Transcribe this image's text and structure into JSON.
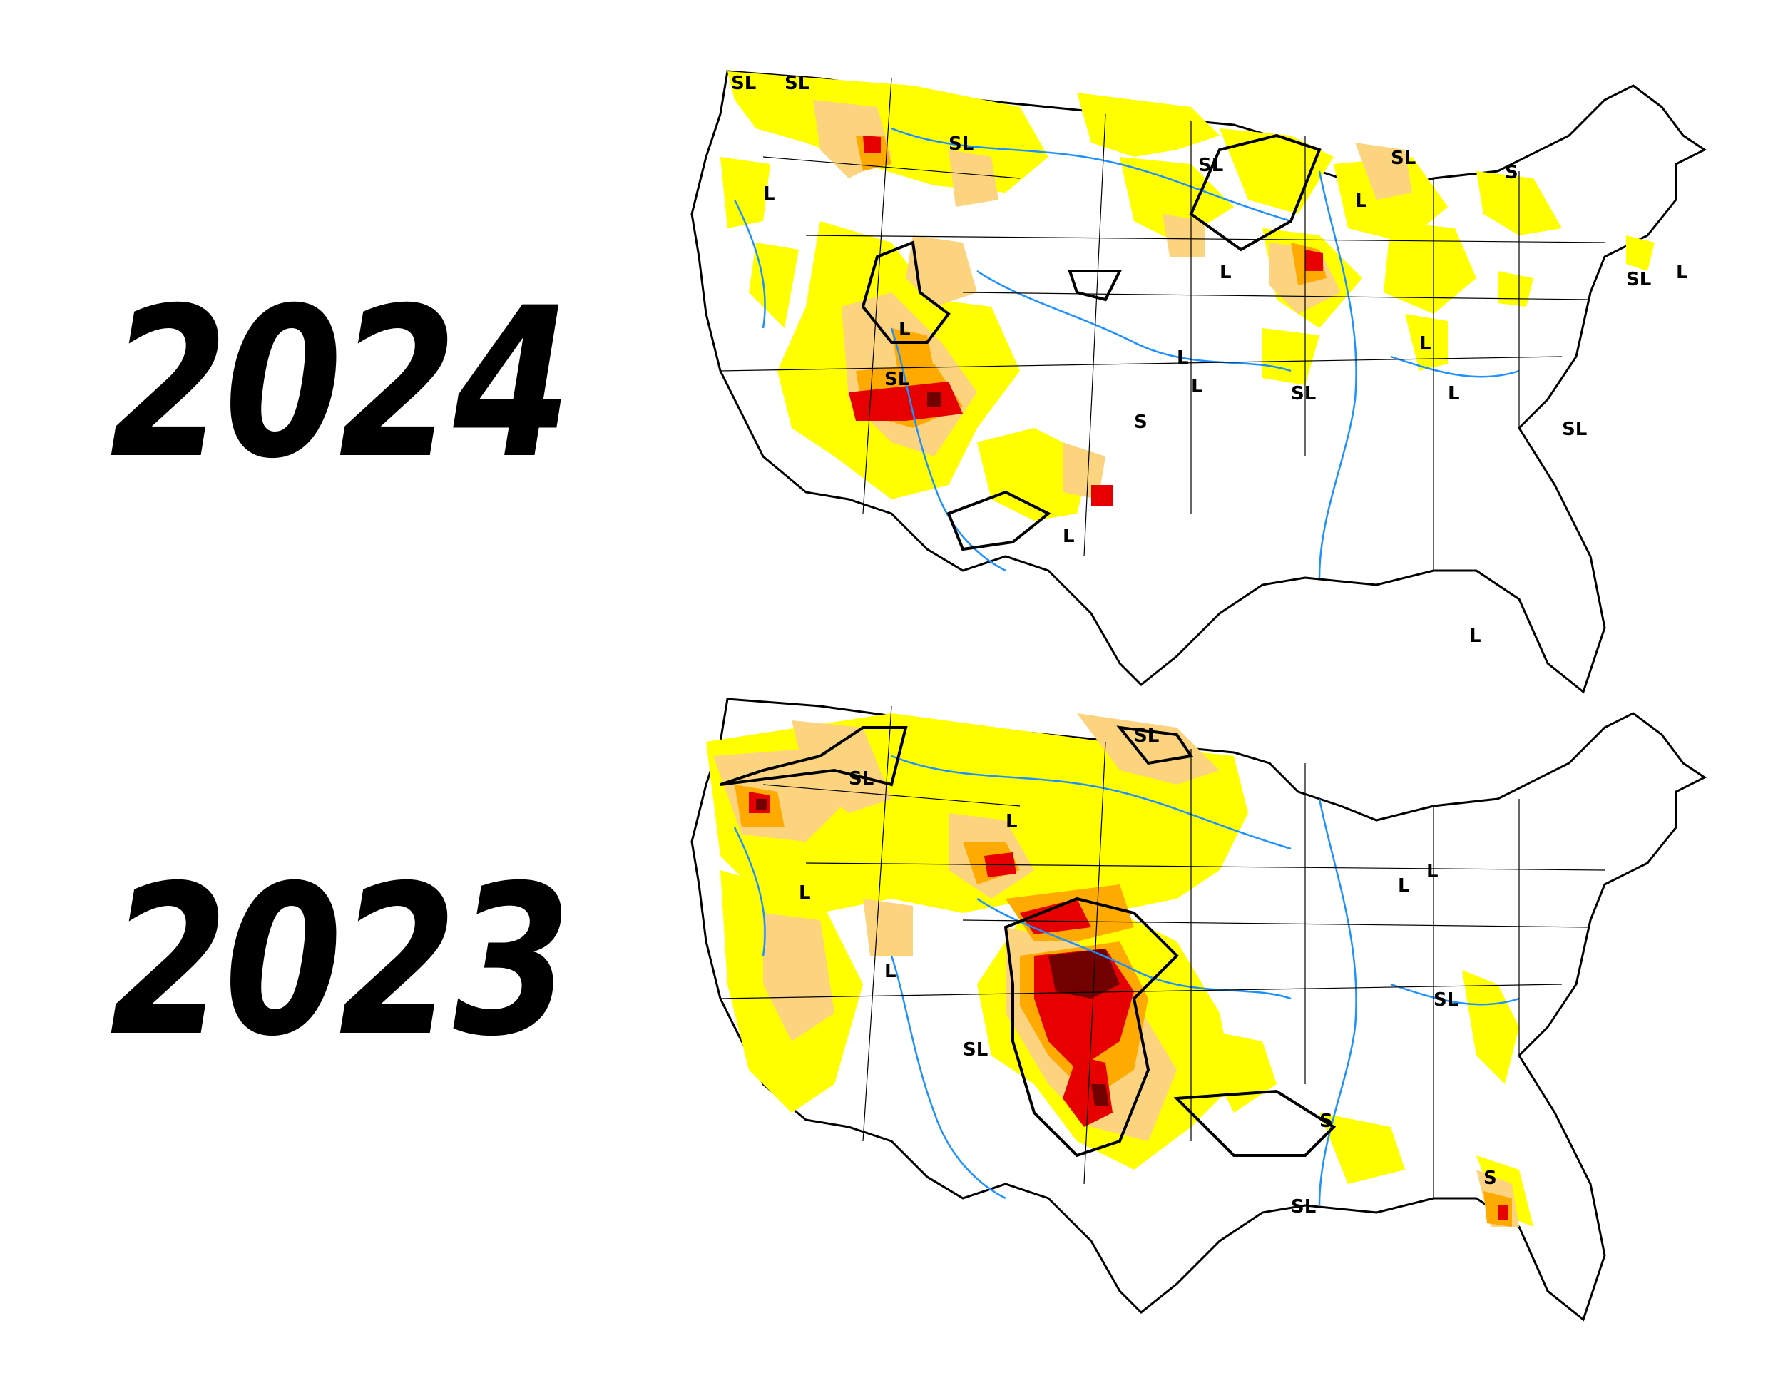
{
  "panels": [
    {
      "year": "2024",
      "labels": [
        "SL",
        "SL",
        "L",
        "SL",
        "SL",
        "S",
        "L",
        "SL",
        "SL",
        "L",
        "L",
        "S",
        "L",
        "L",
        "SL",
        "L",
        "SL",
        "L",
        "L",
        "L",
        "SL",
        "L"
      ]
    },
    {
      "year": "2023",
      "labels": [
        "SL",
        "SL",
        "L",
        "L",
        "L",
        "L",
        "SL",
        "SL",
        "S",
        "S",
        "SL",
        "L"
      ]
    }
  ],
  "colors": {
    "D0": "#ffff00",
    "D1": "#fcd37f",
    "D2": "#ffaa00",
    "D3": "#e60000",
    "D4": "#730000",
    "water": "#1e90ff",
    "outline": "#000000"
  }
}
